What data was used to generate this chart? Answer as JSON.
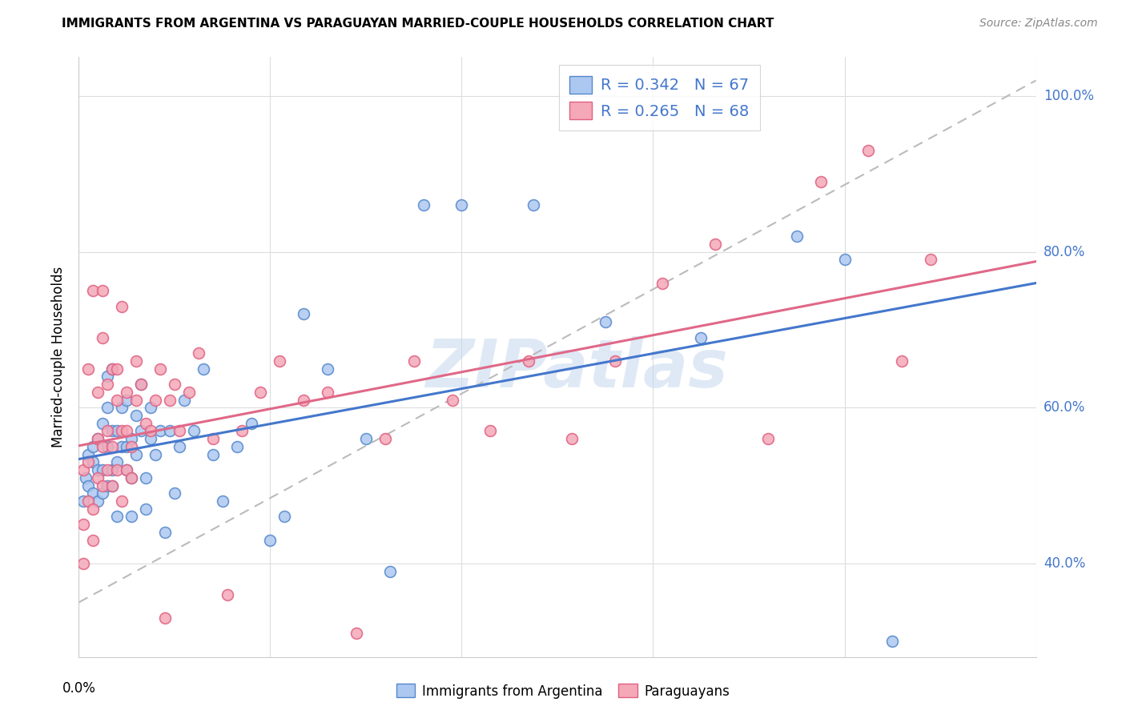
{
  "title": "IMMIGRANTS FROM ARGENTINA VS PARAGUAYAN MARRIED-COUPLE HOUSEHOLDS CORRELATION CHART",
  "source": "Source: ZipAtlas.com",
  "ylabel": "Married-couple Households",
  "legend_blue_R": "0.342",
  "legend_blue_N": "67",
  "legend_pink_R": "0.265",
  "legend_pink_N": "68",
  "blue_fill": "#adc8f0",
  "blue_edge": "#5588cc",
  "pink_fill": "#f4a8b8",
  "pink_edge": "#e06080",
  "blue_line": "#4477cc",
  "pink_line": "#e06888",
  "dash_color": "#bbbbbb",
  "watermark": "ZIPatlas",
  "title_fontsize": 11,
  "source_fontsize": 10,
  "xlim": [
    0.0,
    0.2
  ],
  "ylim": [
    0.28,
    1.05
  ],
  "ytick_vals": [
    0.4,
    0.6,
    0.8,
    1.0
  ],
  "ytick_labels": [
    "40.0%",
    "60.0%",
    "80.0%",
    "100.0%"
  ],
  "blue_x": [
    0.001,
    0.0015,
    0.002,
    0.002,
    0.003,
    0.003,
    0.003,
    0.004,
    0.004,
    0.004,
    0.005,
    0.005,
    0.005,
    0.006,
    0.006,
    0.006,
    0.006,
    0.007,
    0.007,
    0.007,
    0.007,
    0.008,
    0.008,
    0.008,
    0.009,
    0.009,
    0.01,
    0.01,
    0.01,
    0.011,
    0.011,
    0.011,
    0.012,
    0.012,
    0.013,
    0.013,
    0.014,
    0.014,
    0.015,
    0.015,
    0.016,
    0.017,
    0.018,
    0.019,
    0.02,
    0.021,
    0.022,
    0.024,
    0.026,
    0.028,
    0.03,
    0.033,
    0.036,
    0.04,
    0.043,
    0.047,
    0.052,
    0.06,
    0.065,
    0.072,
    0.08,
    0.095,
    0.11,
    0.13,
    0.15,
    0.16,
    0.17
  ],
  "blue_y": [
    0.48,
    0.51,
    0.5,
    0.54,
    0.53,
    0.49,
    0.55,
    0.52,
    0.48,
    0.56,
    0.52,
    0.49,
    0.58,
    0.5,
    0.55,
    0.6,
    0.64,
    0.52,
    0.57,
    0.5,
    0.65,
    0.53,
    0.57,
    0.46,
    0.55,
    0.6,
    0.55,
    0.61,
    0.52,
    0.56,
    0.51,
    0.46,
    0.54,
    0.59,
    0.63,
    0.57,
    0.51,
    0.47,
    0.56,
    0.6,
    0.54,
    0.57,
    0.44,
    0.57,
    0.49,
    0.55,
    0.61,
    0.57,
    0.65,
    0.54,
    0.48,
    0.55,
    0.58,
    0.43,
    0.46,
    0.72,
    0.65,
    0.56,
    0.39,
    0.86,
    0.86,
    0.86,
    0.71,
    0.69,
    0.82,
    0.79,
    0.3
  ],
  "pink_x": [
    0.001,
    0.001,
    0.001,
    0.002,
    0.002,
    0.002,
    0.003,
    0.003,
    0.003,
    0.004,
    0.004,
    0.004,
    0.005,
    0.005,
    0.005,
    0.005,
    0.006,
    0.006,
    0.006,
    0.007,
    0.007,
    0.007,
    0.008,
    0.008,
    0.008,
    0.009,
    0.009,
    0.009,
    0.01,
    0.01,
    0.01,
    0.011,
    0.011,
    0.012,
    0.012,
    0.013,
    0.014,
    0.015,
    0.016,
    0.017,
    0.018,
    0.019,
    0.02,
    0.021,
    0.023,
    0.025,
    0.028,
    0.031,
    0.034,
    0.038,
    0.042,
    0.047,
    0.052,
    0.058,
    0.064,
    0.07,
    0.078,
    0.086,
    0.094,
    0.103,
    0.112,
    0.122,
    0.133,
    0.144,
    0.155,
    0.165,
    0.172,
    0.178
  ],
  "pink_y": [
    0.4,
    0.45,
    0.52,
    0.48,
    0.53,
    0.65,
    0.43,
    0.47,
    0.75,
    0.51,
    0.56,
    0.62,
    0.5,
    0.55,
    0.69,
    0.75,
    0.52,
    0.57,
    0.63,
    0.5,
    0.55,
    0.65,
    0.52,
    0.61,
    0.65,
    0.48,
    0.57,
    0.73,
    0.52,
    0.57,
    0.62,
    0.51,
    0.55,
    0.61,
    0.66,
    0.63,
    0.58,
    0.57,
    0.61,
    0.65,
    0.33,
    0.61,
    0.63,
    0.57,
    0.62,
    0.67,
    0.56,
    0.36,
    0.57,
    0.62,
    0.66,
    0.61,
    0.62,
    0.31,
    0.56,
    0.66,
    0.61,
    0.57,
    0.66,
    0.56,
    0.66,
    0.76,
    0.81,
    0.56,
    0.89,
    0.93,
    0.66,
    0.79
  ]
}
